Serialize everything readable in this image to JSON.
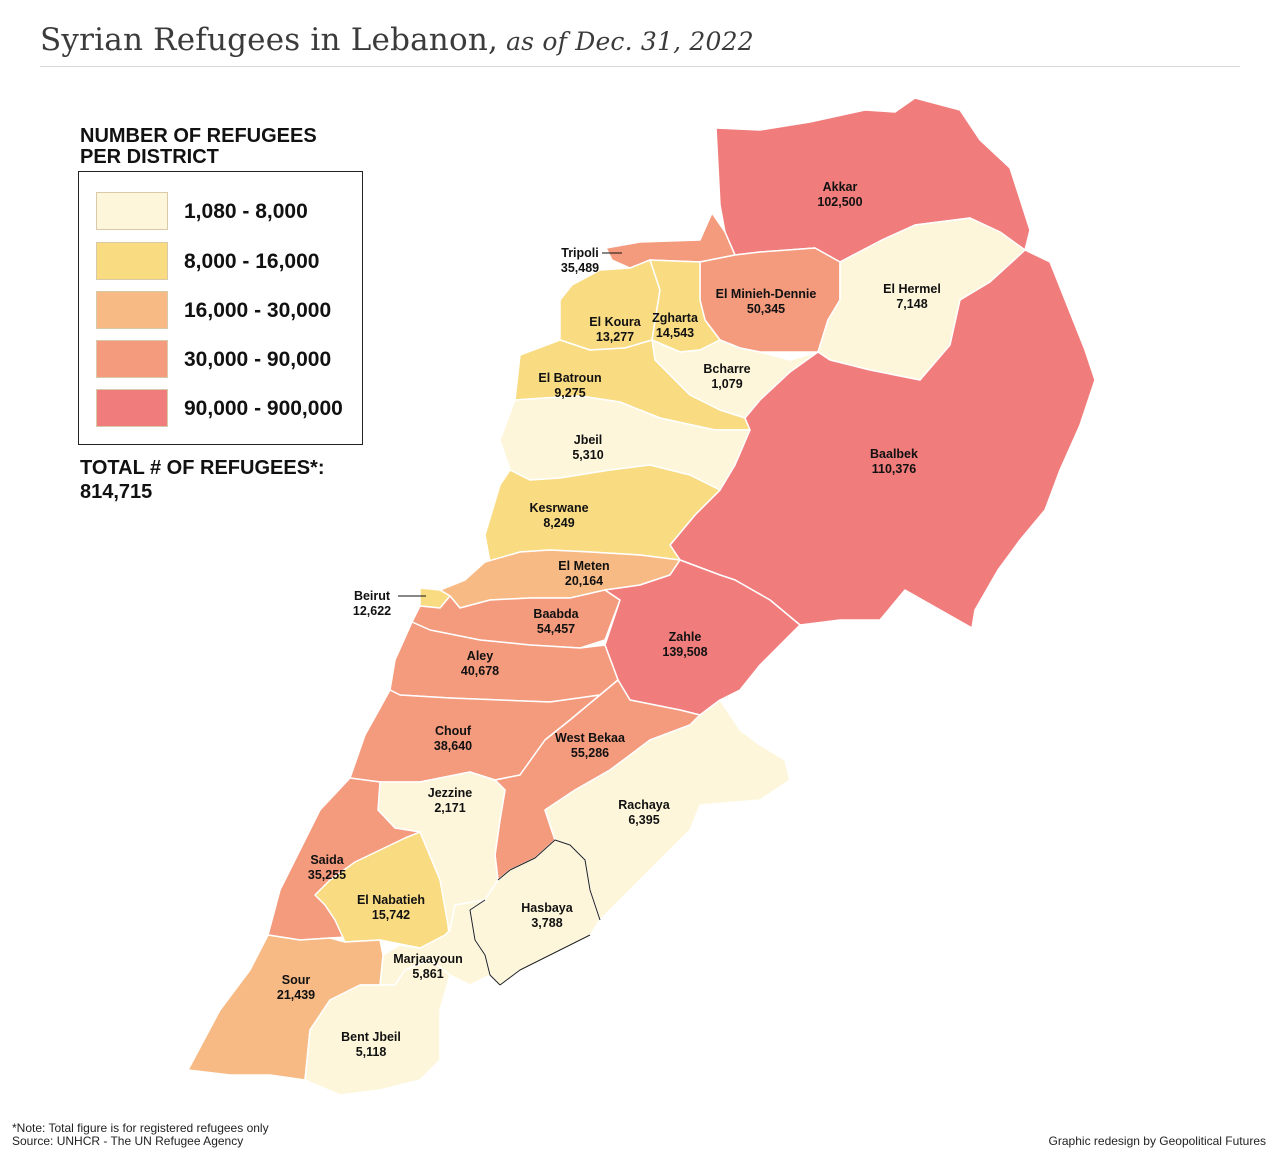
{
  "title": {
    "main": "Syrian Refugees in Lebanon,",
    "sub": "as of Dec. 31, 2022"
  },
  "legend": {
    "title_line1": "NUMBER OF REFUGEES",
    "title_line2": "PER DISTRICT",
    "items": [
      {
        "label": "1,080 - 8,000",
        "color": "#fdf6da"
      },
      {
        "label": "8,000 - 16,000",
        "color": "#f9db82"
      },
      {
        "label": "16,000 - 30,000",
        "color": "#f7ba84"
      },
      {
        "label": "30,000 - 90,000",
        "color": "#f49a7d"
      },
      {
        "label": "90,000 - 900,000",
        "color": "#f07c7c"
      }
    ]
  },
  "total": {
    "label": "TOTAL # OF REFUGEES*:",
    "value": "814,715"
  },
  "districts": {
    "akkar": {
      "name": "Akkar",
      "value": "102,500"
    },
    "tripoli": {
      "name": "Tripoli",
      "value": "35,489"
    },
    "minieh": {
      "name": "El Minieh-Dennie",
      "value": "50,345"
    },
    "hermel": {
      "name": "El Hermel",
      "value": "7,148"
    },
    "koura": {
      "name": "El Koura",
      "value": "13,277"
    },
    "zgharta": {
      "name": "Zgharta",
      "value": "14,543"
    },
    "bcharre": {
      "name": "Bcharre",
      "value": "1,079"
    },
    "batroun": {
      "name": "El Batroun",
      "value": "9,275"
    },
    "jbeil": {
      "name": "Jbeil",
      "value": "5,310"
    },
    "baalbek": {
      "name": "Baalbek",
      "value": "110,376"
    },
    "kesrwane": {
      "name": "Kesrwane",
      "value": "8,249"
    },
    "meten": {
      "name": "El Meten",
      "value": "20,164"
    },
    "beirut": {
      "name": "Beirut",
      "value": "12,622"
    },
    "baabda": {
      "name": "Baabda",
      "value": "54,457"
    },
    "zahle": {
      "name": "Zahle",
      "value": "139,508"
    },
    "aley": {
      "name": "Aley",
      "value": "40,678"
    },
    "chouf": {
      "name": "Chouf",
      "value": "38,640"
    },
    "westbekaa": {
      "name": "West Bekaa",
      "value": "55,286"
    },
    "jezzine": {
      "name": "Jezzine",
      "value": "2,171"
    },
    "rachaya": {
      "name": "Rachaya",
      "value": "6,395"
    },
    "saida": {
      "name": "Saida",
      "value": "35,255"
    },
    "nabatieh": {
      "name": "El Nabatieh",
      "value": "15,742"
    },
    "hasbaya": {
      "name": "Hasbaya",
      "value": "3,788"
    },
    "marjaayoun": {
      "name": "Marjaayoun",
      "value": "5,861"
    },
    "sour": {
      "name": "Sour",
      "value": "21,439"
    },
    "bentjbeil": {
      "name": "Bent Jbeil",
      "value": "5,118"
    }
  },
  "footer": {
    "note": "*Note: Total figure is for registered refugees only",
    "source": "Source: UNHCR - The UN Refugee Agency",
    "credit": "Graphic redesign by Geopolitical Futures"
  }
}
